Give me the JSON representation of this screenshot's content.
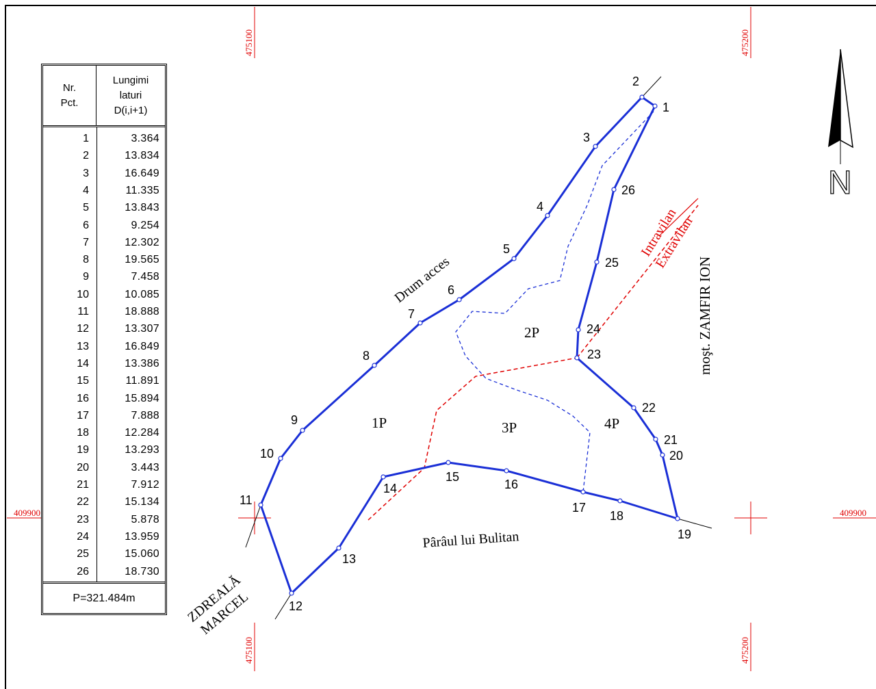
{
  "table": {
    "header_col1": [
      "Nr.",
      "Pct."
    ],
    "header_col2": [
      "Lungimi",
      "laturi",
      "D(i,i+1)"
    ],
    "rows": [
      {
        "n": "1",
        "d": "3.364"
      },
      {
        "n": "2",
        "d": "13.834"
      },
      {
        "n": "3",
        "d": "16.649"
      },
      {
        "n": "4",
        "d": "11.335"
      },
      {
        "n": "5",
        "d": "13.843"
      },
      {
        "n": "6",
        "d": "9.254"
      },
      {
        "n": "7",
        "d": "12.302"
      },
      {
        "n": "8",
        "d": "19.565"
      },
      {
        "n": "9",
        "d": "7.458"
      },
      {
        "n": "10",
        "d": "10.085"
      },
      {
        "n": "11",
        "d": "18.888"
      },
      {
        "n": "12",
        "d": "13.307"
      },
      {
        "n": "13",
        "d": "16.849"
      },
      {
        "n": "14",
        "d": "13.386"
      },
      {
        "n": "15",
        "d": "11.891"
      },
      {
        "n": "16",
        "d": "15.894"
      },
      {
        "n": "17",
        "d": "7.888"
      },
      {
        "n": "18",
        "d": "12.284"
      },
      {
        "n": "19",
        "d": "13.293"
      },
      {
        "n": "20",
        "d": "3.443"
      },
      {
        "n": "21",
        "d": "7.912"
      },
      {
        "n": "22",
        "d": "15.134"
      },
      {
        "n": "23",
        "d": "5.878"
      },
      {
        "n": "24",
        "d": "13.959"
      },
      {
        "n": "25",
        "d": "15.060"
      },
      {
        "n": "26",
        "d": "18.730"
      }
    ],
    "perimeter": "P=321.484m"
  },
  "grid_labels": {
    "x_left": "475100",
    "x_right": "475200",
    "y": "409900"
  },
  "north_label": "N",
  "parcels": [
    "1P",
    "2P",
    "3P",
    "4P"
  ],
  "neighbours": {
    "road": "Drum acces",
    "stream": "Pârâul lui Bulitan",
    "east": "moşt. ZAMFIR ION",
    "southwest_line1": "ZDREALĂ",
    "southwest_line2": "MARCEL"
  },
  "zone_labels": {
    "intravilan": "Intravilan",
    "extravilan": "Extravilan"
  },
  "colors": {
    "boundary": "#1a2fd6",
    "parcel_division": "#1a2fd6",
    "zone_limit": "#e00000",
    "grid": "#e00000"
  },
  "points": [
    {
      "id": "1"
    },
    {
      "id": "2"
    },
    {
      "id": "3"
    },
    {
      "id": "4"
    },
    {
      "id": "5"
    },
    {
      "id": "6"
    },
    {
      "id": "7"
    },
    {
      "id": "8"
    },
    {
      "id": "9"
    },
    {
      "id": "10"
    },
    {
      "id": "11"
    },
    {
      "id": "12"
    },
    {
      "id": "13"
    },
    {
      "id": "14"
    },
    {
      "id": "15"
    },
    {
      "id": "16"
    },
    {
      "id": "17"
    },
    {
      "id": "18"
    },
    {
      "id": "19"
    },
    {
      "id": "20"
    },
    {
      "id": "21"
    },
    {
      "id": "22"
    },
    {
      "id": "23"
    },
    {
      "id": "24"
    },
    {
      "id": "25"
    },
    {
      "id": "26"
    }
  ]
}
